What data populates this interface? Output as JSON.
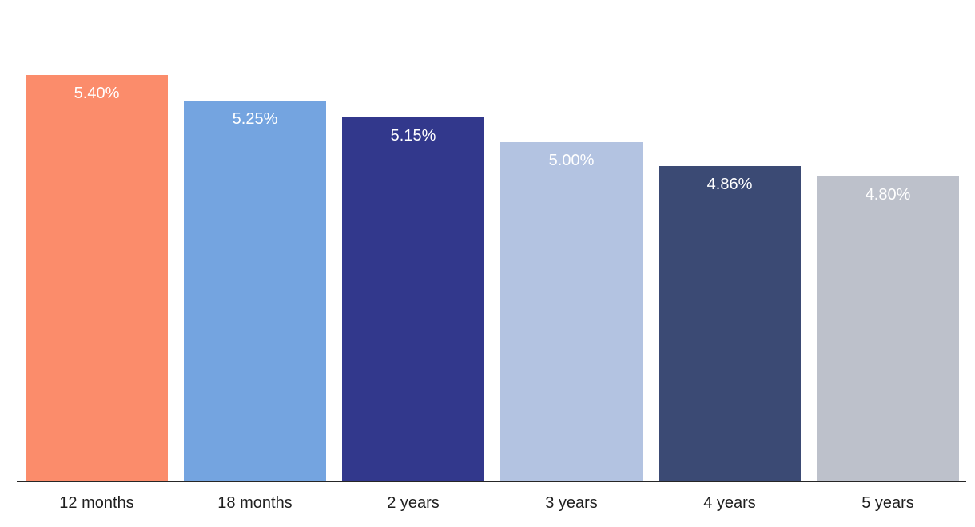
{
  "chart_data": {
    "type": "bar",
    "title": "",
    "xlabel": "",
    "ylabel": "",
    "categories": [
      "12 months",
      "18 months",
      "2 years",
      "3 years",
      "4 years",
      "5 years"
    ],
    "values": [
      5.4,
      5.25,
      5.15,
      5.0,
      4.86,
      4.8
    ],
    "data_labels": [
      "5.40%",
      "5.25%",
      "5.15%",
      "5.00%",
      "4.86%",
      "4.80%"
    ],
    "bar_colors": [
      "#fb8c6b",
      "#74a4e0",
      "#32388c",
      "#b3c3e1",
      "#3b4a74",
      "#bdc1cb"
    ],
    "data_label_color": "#ffffff",
    "tick_label_color": "#1f1f1f",
    "axis_line_color": "#262626",
    "background_color": "#ffffff",
    "ylim": [
      3.0,
      5.55
    ],
    "grid": false,
    "legend": false
  }
}
